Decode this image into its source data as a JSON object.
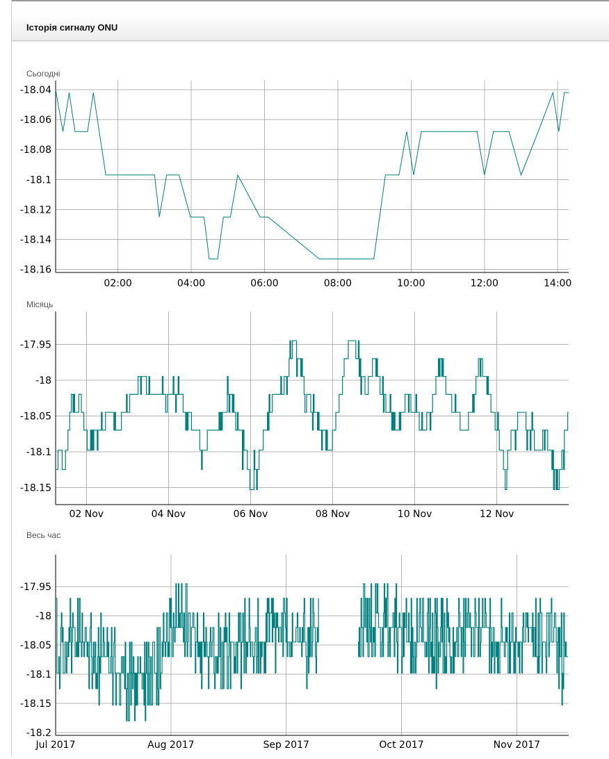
{
  "panel": {
    "title": "Історія сигналу ONU"
  },
  "colors": {
    "series": "#00807f",
    "grid": "#b3b3b3"
  },
  "chart_data": [
    {
      "type": "line",
      "name": "Сьогодні",
      "xlabel": "",
      "ylabel": "",
      "x_unit": "hours",
      "xlim": [
        0.3,
        14.3
      ],
      "ylim": [
        -18.162,
        -18.034
      ],
      "yticks": [
        -18.04,
        -18.06,
        -18.08,
        -18.1,
        -18.12,
        -18.14,
        -18.16
      ],
      "ytick_labels": [
        "-18.04",
        "-18.06",
        "-18.08",
        "-18.1",
        "-18.12",
        "-18.14",
        "-18.16"
      ],
      "xticks": [
        2,
        4,
        6,
        8,
        10,
        12,
        14
      ],
      "xtick_labels": [
        "02:00",
        "04:00",
        "06:00",
        "08:00",
        "10:00",
        "12:00",
        "14:00"
      ],
      "grid": true,
      "x": [
        0.3,
        0.5,
        0.67,
        0.83,
        1.17,
        1.33,
        1.67,
        2.17,
        2.67,
        3.0,
        3.13,
        3.33,
        3.67,
        3.98,
        4.35,
        4.49,
        4.72,
        4.88,
        5.07,
        5.27,
        5.88,
        6.1,
        7.5,
        8.98,
        9.3,
        9.67,
        9.88,
        10.07,
        10.28,
        11.0,
        11.8,
        12.0,
        12.25,
        12.67,
        13.0,
        13.47,
        13.87,
        14.03,
        14.18,
        14.3
      ],
      "y": [
        -18.04,
        -18.068,
        -18.042,
        -18.068,
        -18.068,
        -18.042,
        -18.097,
        -18.097,
        -18.097,
        -18.097,
        -18.125,
        -18.097,
        -18.097,
        -18.125,
        -18.125,
        -18.153,
        -18.153,
        -18.125,
        -18.125,
        -18.097,
        -18.125,
        -18.125,
        -18.153,
        -18.153,
        -18.097,
        -18.097,
        -18.068,
        -18.097,
        -18.068,
        -18.068,
        -18.068,
        -18.097,
        -18.068,
        -18.068,
        -18.097,
        -18.068,
        -18.042,
        -18.068,
        -18.042,
        -18.042
      ]
    },
    {
      "type": "line",
      "name": "Місяць",
      "xlabel": "",
      "ylabel": "",
      "x_unit": "days (November 2017)",
      "xlim": [
        1.25,
        13.75
      ],
      "ylim": [
        -18.174,
        -17.904
      ],
      "yticks": [
        -17.95,
        -18,
        -18.05,
        -18.1,
        -18.15
      ],
      "ytick_labels": [
        "-17.95",
        "-18",
        "-18.05",
        "-18.1",
        "-18.15"
      ],
      "xticks": [
        2,
        4,
        6,
        8,
        10,
        12
      ],
      "xtick_labels": [
        "02 Nov",
        "04 Nov",
        "06 Nov",
        "08 Nov",
        "10 Nov",
        "12 Nov"
      ],
      "grid": true,
      "x": [
        1.25,
        1.35,
        1.45,
        1.55,
        1.65,
        1.75,
        1.85,
        1.95,
        2.05,
        2.2,
        2.35,
        2.55,
        2.75,
        2.95,
        3.15,
        3.35,
        3.55,
        3.75,
        3.95,
        4.1,
        4.25,
        4.45,
        4.65,
        4.85,
        5.05,
        5.25,
        5.45,
        5.65,
        5.85,
        6.0,
        6.15,
        6.35,
        6.55,
        6.75,
        6.95,
        7.05,
        7.2,
        7.35,
        7.55,
        7.75,
        7.95,
        8.1,
        8.2,
        8.3,
        8.45,
        8.6,
        8.8,
        9.0,
        9.2,
        9.4,
        9.6,
        9.8,
        10.0,
        10.2,
        10.4,
        10.6,
        10.8,
        11.0,
        11.2,
        11.4,
        11.6,
        11.8,
        12.0,
        12.2,
        12.4,
        12.6,
        12.8,
        13.0,
        13.2,
        13.35,
        13.5,
        13.6,
        13.75
      ],
      "y": [
        -18.125,
        -18.1,
        -18.125,
        -18.07,
        -18.02,
        -18.045,
        -18.02,
        -18.07,
        -18.098,
        -18.07,
        -18.07,
        -18.045,
        -18.07,
        -18.045,
        -18.02,
        -17.995,
        -18.02,
        -18.02,
        -18.02,
        -18.02,
        -18.02,
        -18.045,
        -18.07,
        -18.098,
        -18.07,
        -18.07,
        -18.02,
        -18.045,
        -18.098,
        -18.15,
        -18.125,
        -18.07,
        -18.02,
        -18.02,
        -17.98,
        -17.945,
        -17.97,
        -18.02,
        -18.045,
        -18.07,
        -18.098,
        -18.045,
        -18.02,
        -17.97,
        -17.945,
        -17.97,
        -18.02,
        -17.97,
        -18.02,
        -18.045,
        -18.07,
        -18.02,
        -18.045,
        -18.07,
        -18.045,
        -17.97,
        -18.02,
        -18.045,
        -18.07,
        -18.045,
        -17.97,
        -18.02,
        -18.07,
        -18.125,
        -18.07,
        -18.045,
        -18.07,
        -18.098,
        -18.07,
        -18.125,
        -18.15,
        -18.098,
        -18.045
      ]
    },
    {
      "type": "line",
      "name": "Весь час",
      "xlabel": "",
      "ylabel": "",
      "x_unit": "months (2017)",
      "xlim": [
        7.0,
        11.45
      ],
      "ylim": [
        -18.205,
        -17.895
      ],
      "yticks": [
        -17.95,
        -18,
        -18.05,
        -18.1,
        -18.15,
        -18.2
      ],
      "ytick_labels": [
        "-17.95",
        "-18",
        "-18.05",
        "-18.1",
        "-18.15",
        "-18.2"
      ],
      "xticks": [
        7.0,
        8.0,
        9.0,
        10.0,
        11.0
      ],
      "xtick_labels": [
        "Jul 2017",
        "Aug 2017",
        "Sep 2017",
        "Oct 2017",
        "Nov 2017"
      ],
      "grid": true,
      "gap": [
        9.28,
        9.62
      ],
      "noise_range": [
        -18.18,
        -17.93
      ],
      "x": [
        7.0,
        7.2,
        7.4,
        7.55,
        7.7,
        7.85,
        8.0,
        8.15,
        8.3,
        8.5,
        8.7,
        8.9,
        9.1,
        9.28,
        9.62,
        9.8,
        10.0,
        10.2,
        10.4,
        10.6,
        10.8,
        11.0,
        11.2,
        11.45
      ],
      "y": [
        -18.04,
        -18.03,
        -18.08,
        -18.1,
        -18.11,
        -18.1,
        -18.02,
        -18.0,
        -18.07,
        -18.05,
        -18.04,
        -18.03,
        -18.04,
        -18.04,
        -18.02,
        -18.01,
        -18.03,
        -18.04,
        -18.04,
        -18.02,
        -18.03,
        -18.05,
        -18.03,
        -18.08
      ]
    }
  ]
}
